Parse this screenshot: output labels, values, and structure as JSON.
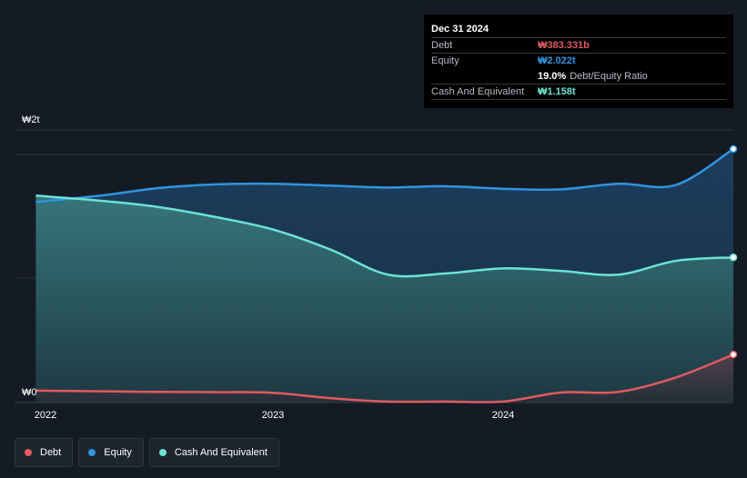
{
  "tooltip": {
    "date": "Dec 31 2024",
    "debt_label": "Debt",
    "debt_value": "₩383.331b",
    "equity_label": "Equity",
    "equity_value": "₩2.022t",
    "ratio_value": "19.0%",
    "ratio_label": "Debt/Equity Ratio",
    "cash_label": "Cash And Equivalent",
    "cash_value": "₩1.158t"
  },
  "legend": [
    {
      "label": "Debt",
      "color": "#e05a5f"
    },
    {
      "label": "Equity",
      "color": "#2f95e0"
    },
    {
      "label": "Cash And Equivalent",
      "color": "#6ae3d6"
    }
  ],
  "chart_data": {
    "type": "area",
    "y_tick_labels": [
      "₩2t",
      "₩0"
    ],
    "ylim": [
      0,
      2.0
    ],
    "x_tick_labels": [
      "2022",
      "2023",
      "2024"
    ],
    "x": [
      2021.97,
      2022.25,
      2022.5,
      2022.75,
      2023.0,
      2023.25,
      2023.5,
      2023.75,
      2024.0,
      2024.25,
      2024.5,
      2024.75,
      2025.0
    ],
    "series": [
      {
        "name": "Equity",
        "color": "#2f95e0",
        "values": [
          1.6,
          1.65,
          1.71,
          1.74,
          1.745,
          1.73,
          1.715,
          1.725,
          1.705,
          1.7,
          1.745,
          1.735,
          2.022
        ]
      },
      {
        "name": "Cash And Equivalent",
        "color": "#6ae3d6",
        "values": [
          1.65,
          1.61,
          1.56,
          1.48,
          1.38,
          1.22,
          1.02,
          1.03,
          1.07,
          1.05,
          1.02,
          1.13,
          1.158
        ]
      },
      {
        "name": "Debt",
        "color": "#e05a5f",
        "values": [
          0.095,
          0.09,
          0.085,
          0.083,
          0.078,
          0.035,
          0.008,
          0.008,
          0.008,
          0.08,
          0.085,
          0.2,
          0.383
        ]
      }
    ]
  }
}
